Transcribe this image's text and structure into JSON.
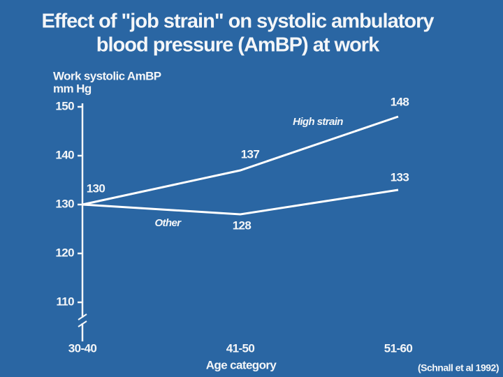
{
  "chart_data": {
    "type": "line",
    "title": [
      "Effect of \"job strain\" on systolic ambulatory",
      "blood pressure (AmBP) at work"
    ],
    "ylabel": "Work systolic AmBP",
    "yunit": "mm Hg",
    "xlabel": "Age category",
    "source": "(Schnall et al 1992)",
    "categories": [
      "30-40",
      "41-50",
      "51-60"
    ],
    "series": [
      {
        "name": "High strain",
        "color": "#ffffff",
        "values": [
          130,
          137,
          148
        ]
      },
      {
        "name": "Other",
        "color": "#ffffff",
        "values": [
          130,
          128,
          133
        ]
      }
    ],
    "ylim": [
      102,
      150
    ],
    "yticks": [
      110,
      120,
      130,
      140,
      150
    ],
    "axis_break": true
  }
}
